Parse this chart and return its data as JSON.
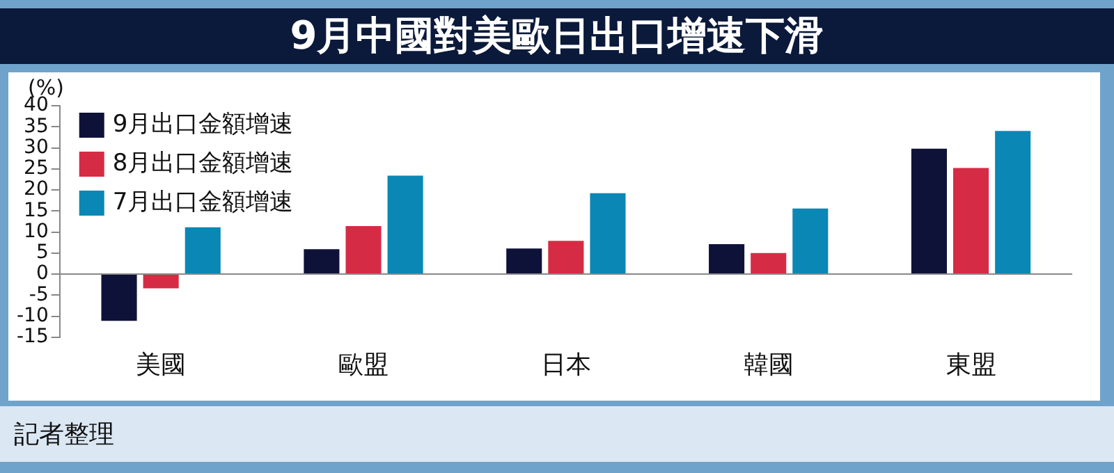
{
  "chart_data": {
    "type": "bar",
    "title": "9月中國對美歐日出口增速下滑",
    "ylabel": "(%)",
    "categories": [
      "美國",
      "歐盟",
      "日本",
      "韓國",
      "東盟"
    ],
    "series": [
      {
        "name": "9月出口金額增速",
        "color": "#0f1238",
        "values": [
          -11.1,
          5.9,
          6.1,
          7.1,
          29.8
        ]
      },
      {
        "name": "8月出口金額增速",
        "color": "#d62b45",
        "values": [
          -3.4,
          11.4,
          7.9,
          5.0,
          25.2
        ]
      },
      {
        "name": "7月出口金額增速",
        "color": "#0a87b5",
        "values": [
          11.1,
          23.4,
          19.2,
          15.6,
          34.0
        ]
      }
    ],
    "ylim": [
      -15,
      40
    ],
    "yticks": [
      -15,
      -10,
      -5,
      0,
      5,
      10,
      15,
      20,
      25,
      30,
      35,
      40
    ],
    "grid": false,
    "legend": "top left",
    "ref_lines": [
      {
        "axis": "y",
        "value": 0,
        "color": "#888888"
      }
    ],
    "annotations": [
      "記者整理"
    ]
  }
}
